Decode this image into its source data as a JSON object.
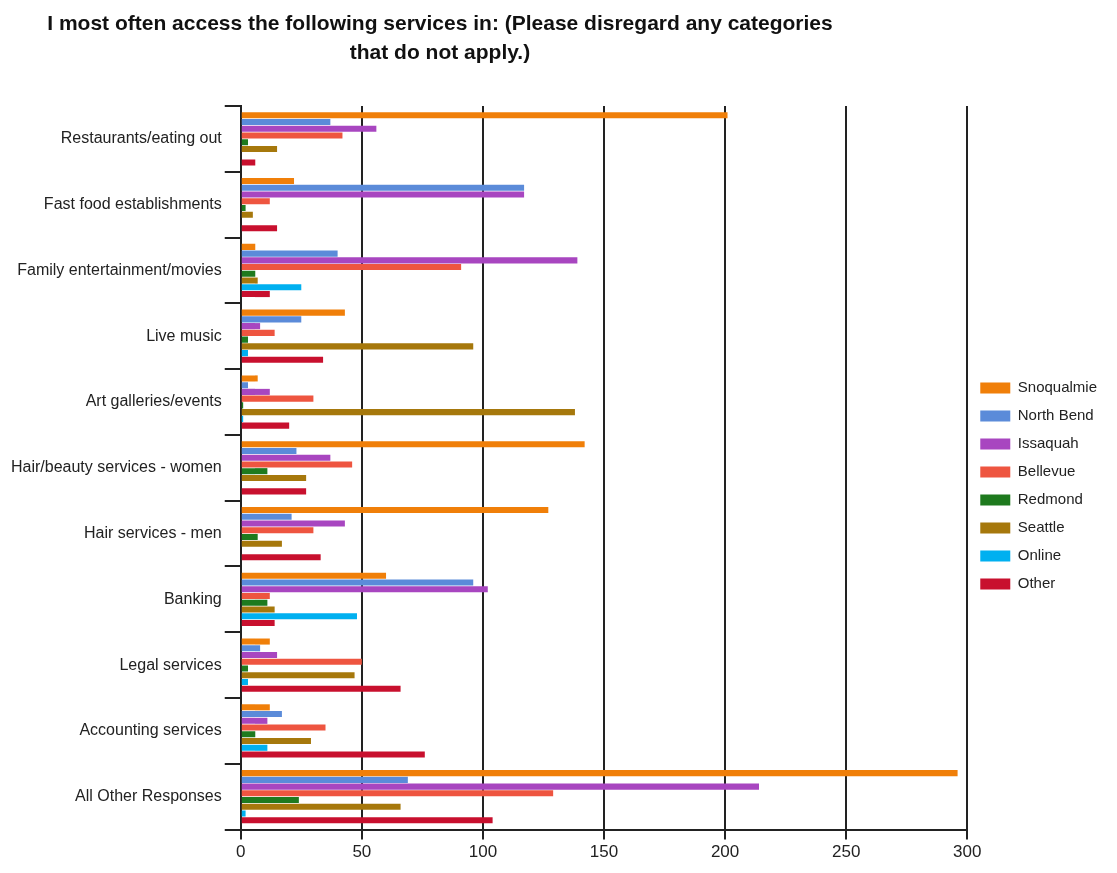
{
  "chart_data": {
    "type": "bar",
    "orientation": "horizontal",
    "title": "I most often access the following services in: (Please disregard any categories that do not apply.)",
    "categories": [
      "Restaurants/eating out",
      "Fast food establishments",
      "Family entertainment/movies",
      "Live music",
      "Art galleries/events",
      "Hair/beauty services - women",
      "Hair services - men",
      "Banking",
      "Legal services",
      "Accounting services",
      "All Other Responses"
    ],
    "series": [
      {
        "name": "Snoqualmie",
        "color": "#f07f09",
        "values": [
          201,
          22,
          6,
          43,
          7,
          142,
          127,
          60,
          12,
          12,
          296
        ]
      },
      {
        "name": "North Bend",
        "color": "#5b8bd9",
        "values": [
          37,
          117,
          40,
          25,
          3,
          23,
          21,
          96,
          8,
          17,
          69
        ]
      },
      {
        "name": "Issaquah",
        "color": "#a846c0",
        "values": [
          56,
          117,
          139,
          8,
          12,
          37,
          43,
          102,
          15,
          11,
          214
        ]
      },
      {
        "name": "Bellevue",
        "color": "#ee5540",
        "values": [
          42,
          12,
          91,
          14,
          30,
          46,
          30,
          12,
          50,
          35,
          129
        ]
      },
      {
        "name": "Redmond",
        "color": "#1e7a1e",
        "values": [
          3,
          2,
          6,
          3,
          1,
          11,
          7,
          11,
          3,
          6,
          24
        ]
      },
      {
        "name": "Seattle",
        "color": "#a6780c",
        "values": [
          15,
          5,
          7,
          96,
          138,
          27,
          17,
          14,
          47,
          29,
          66
        ]
      },
      {
        "name": "Online",
        "color": "#00b0f0",
        "values": [
          0,
          0,
          25,
          3,
          1,
          0,
          0,
          48,
          3,
          11,
          2
        ]
      },
      {
        "name": "Other",
        "color": "#c8102e",
        "values": [
          6,
          15,
          12,
          34,
          20,
          27,
          33,
          14,
          66,
          76,
          104
        ]
      }
    ],
    "xlim": [
      0,
      300
    ],
    "xticks": [
      0,
      50,
      100,
      150,
      200,
      250,
      300
    ],
    "grid": "x",
    "legend": "right"
  }
}
